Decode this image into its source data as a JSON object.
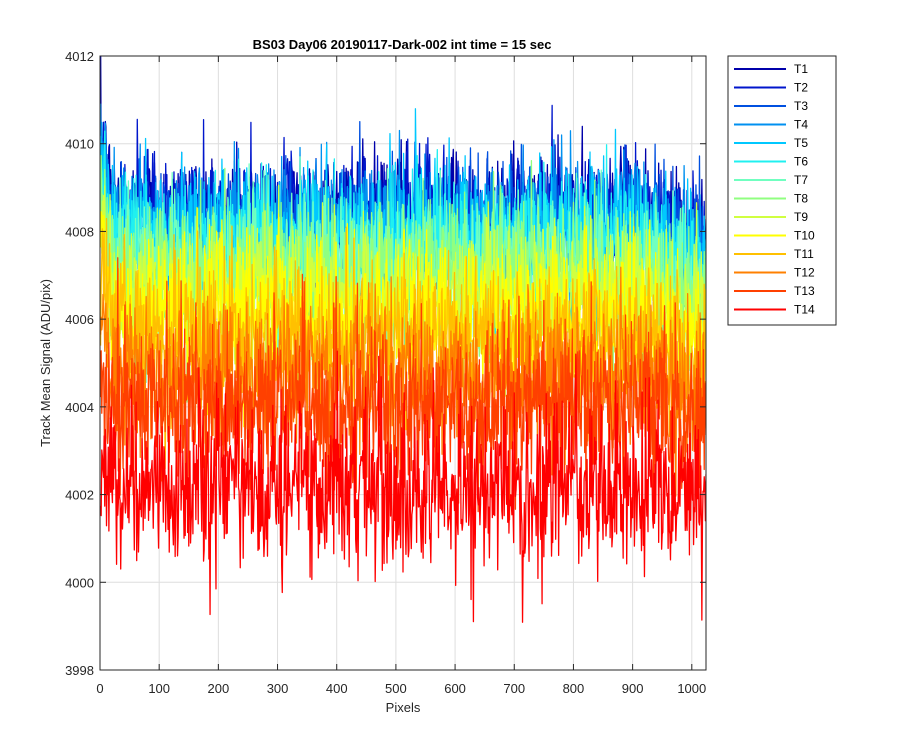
{
  "chart_data": {
    "type": "line",
    "title": "BS03 Day06 20190117-Dark-002 int time = 15 sec",
    "xlabel": "Pixels",
    "ylabel": "Track Mean Signal (ADU/pix)",
    "xlim": [
      0,
      1024
    ],
    "ylim": [
      3998,
      4012
    ],
    "xticks": [
      0,
      100,
      200,
      300,
      400,
      500,
      600,
      700,
      800,
      900,
      1000
    ],
    "yticks": [
      3998,
      4000,
      4002,
      4004,
      4006,
      4008,
      4010,
      4012
    ],
    "grid": true,
    "legend_position": "outside-top-right",
    "n_points": 1024,
    "series": [
      {
        "name": "T1",
        "color": "#0000aa",
        "mean": 4008.3,
        "noise": 0.75,
        "start": 4010.3,
        "end": 4007.7
      },
      {
        "name": "T2",
        "color": "#0016cc",
        "mean": 4008.3,
        "noise": 0.75,
        "start": 4010.1,
        "end": 4007.7
      },
      {
        "name": "T3",
        "color": "#0050e0",
        "mean": 4008.1,
        "noise": 0.75,
        "start": 4009.9,
        "end": 4007.5
      },
      {
        "name": "T4",
        "color": "#0090f0",
        "mean": 4008.0,
        "noise": 0.8,
        "start": 4009.8,
        "end": 4007.3
      },
      {
        "name": "T5",
        "color": "#00c8ff",
        "mean": 4007.9,
        "noise": 0.8,
        "start": 4009.6,
        "end": 4007.2
      },
      {
        "name": "T6",
        "color": "#20f0f0",
        "mean": 4007.6,
        "noise": 0.8,
        "start": 4009.2,
        "end": 4006.9
      },
      {
        "name": "T7",
        "color": "#70ffc0",
        "mean": 4007.3,
        "noise": 0.8,
        "start": 4008.8,
        "end": 4006.6
      },
      {
        "name": "T8",
        "color": "#90ff80",
        "mean": 4007.0,
        "noise": 0.8,
        "start": 4008.4,
        "end": 4006.3
      },
      {
        "name": "T9",
        "color": "#d0ff40",
        "mean": 4006.6,
        "noise": 0.8,
        "start": 4008.0,
        "end": 4005.9
      },
      {
        "name": "T10",
        "color": "#ffff00",
        "mean": 4006.2,
        "noise": 0.85,
        "start": 4007.6,
        "end": 4005.5
      },
      {
        "name": "T11",
        "color": "#ffc000",
        "mean": 4005.6,
        "noise": 0.85,
        "start": 4007.0,
        "end": 4005.0
      },
      {
        "name": "T12",
        "color": "#ff8000",
        "mean": 4004.8,
        "noise": 0.85,
        "start": 4006.2,
        "end": 4004.2
      },
      {
        "name": "T13",
        "color": "#ff4000",
        "mean": 4004.0,
        "noise": 0.9,
        "start": 4005.0,
        "end": 4003.4
      },
      {
        "name": "T14",
        "color": "#ff0000",
        "mean": 4002.2,
        "noise": 0.95,
        "start": 4003.3,
        "end": 4001.8
      }
    ]
  }
}
